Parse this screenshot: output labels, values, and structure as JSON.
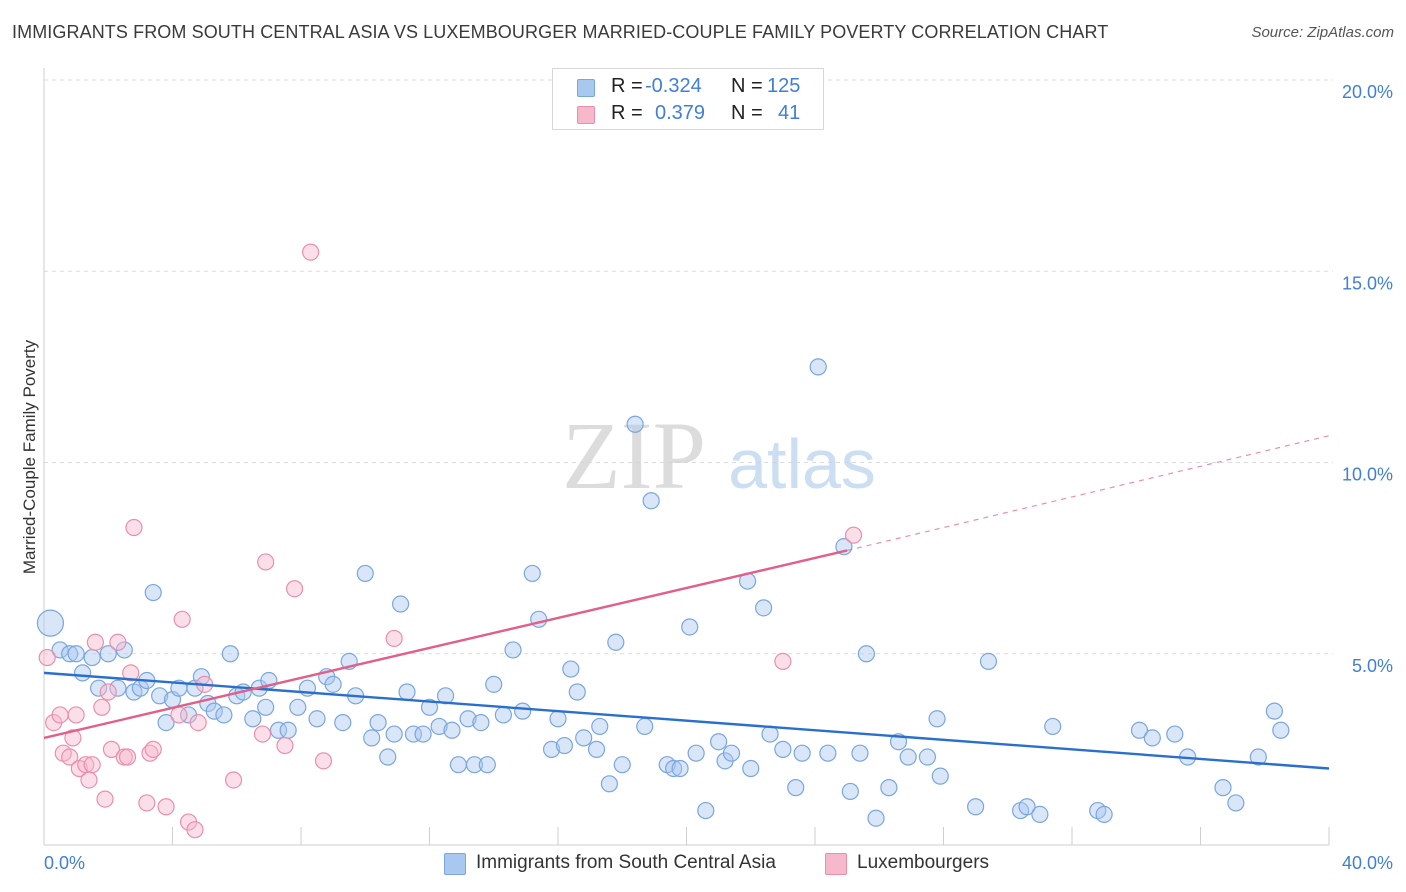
{
  "header": {
    "title": "IMMIGRANTS FROM SOUTH CENTRAL ASIA VS LUXEMBOURGER MARRIED-COUPLE FAMILY POVERTY CORRELATION CHART",
    "source": "Source: ZipAtlas.com"
  },
  "watermark": {
    "zip": "ZIP",
    "atlas": "atlas"
  },
  "stats_legend": {
    "rows": [
      {
        "r_label": "R =",
        "r_value": "-0.324",
        "n_label": "N =",
        "n_value": "125",
        "color": "#a9c8f0",
        "border": "#7aa6e0"
      },
      {
        "r_label": "R =",
        "r_value": "0.379",
        "n_label": "N =",
        "n_value": "41",
        "color": "#f6b9cb",
        "border": "#ea8fab"
      }
    ]
  },
  "chart_data": {
    "type": "scatter",
    "ylabel": "Married-Couple Family Poverty",
    "xlim": [
      0,
      40
    ],
    "ylim": [
      0,
      20
    ],
    "x_ticks": [
      "0.0%",
      "40.0%"
    ],
    "y_ticks": [
      {
        "value": 5,
        "label": "5.0%"
      },
      {
        "value": 10,
        "label": "10.0%"
      },
      {
        "value": 15,
        "label": "15.0%"
      },
      {
        "value": 20,
        "label": "20.0%"
      }
    ],
    "grid": true,
    "series": [
      {
        "name": "Immigrants from South Central Asia",
        "color": "#7aa6e0",
        "fill": "#a9c8f0",
        "trend_color": "#2a6fcc",
        "trend": {
          "x0": 0,
          "y0": 4.5,
          "x1": 40,
          "y1": 2.0,
          "dashed_from": 40
        },
        "points": [
          [
            0.2,
            5.8
          ],
          [
            0.5,
            5.1
          ],
          [
            0.8,
            5.0
          ],
          [
            1.0,
            5.0
          ],
          [
            1.2,
            4.5
          ],
          [
            1.5,
            4.9
          ],
          [
            1.7,
            4.1
          ],
          [
            2.0,
            5.0
          ],
          [
            2.3,
            4.1
          ],
          [
            2.5,
            5.1
          ],
          [
            2.8,
            4.0
          ],
          [
            3.0,
            4.1
          ],
          [
            3.2,
            4.3
          ],
          [
            3.4,
            6.6
          ],
          [
            3.6,
            3.9
          ],
          [
            3.8,
            3.2
          ],
          [
            4.0,
            3.8
          ],
          [
            4.2,
            4.1
          ],
          [
            4.5,
            3.4
          ],
          [
            4.7,
            4.1
          ],
          [
            4.9,
            4.4
          ],
          [
            5.1,
            3.7
          ],
          [
            5.3,
            3.5
          ],
          [
            5.6,
            3.4
          ],
          [
            5.8,
            5.0
          ],
          [
            6.0,
            3.9
          ],
          [
            6.2,
            4.0
          ],
          [
            6.5,
            3.3
          ],
          [
            6.7,
            4.1
          ],
          [
            6.9,
            3.6
          ],
          [
            7.0,
            4.3
          ],
          [
            7.3,
            3.0
          ],
          [
            7.6,
            3.0
          ],
          [
            7.9,
            3.6
          ],
          [
            8.2,
            4.1
          ],
          [
            8.5,
            3.3
          ],
          [
            8.8,
            4.4
          ],
          [
            9.0,
            4.2
          ],
          [
            9.3,
            3.2
          ],
          [
            9.5,
            4.8
          ],
          [
            9.7,
            3.9
          ],
          [
            10.0,
            7.1
          ],
          [
            10.2,
            2.8
          ],
          [
            10.4,
            3.2
          ],
          [
            10.7,
            2.3
          ],
          [
            10.9,
            2.9
          ],
          [
            11.1,
            6.3
          ],
          [
            11.3,
            4.0
          ],
          [
            11.5,
            2.9
          ],
          [
            11.8,
            2.9
          ],
          [
            12.0,
            3.6
          ],
          [
            12.3,
            3.1
          ],
          [
            12.5,
            3.9
          ],
          [
            12.7,
            3.0
          ],
          [
            12.9,
            2.1
          ],
          [
            13.2,
            3.3
          ],
          [
            13.4,
            2.1
          ],
          [
            13.6,
            3.2
          ],
          [
            13.8,
            2.1
          ],
          [
            14.0,
            4.2
          ],
          [
            14.3,
            3.4
          ],
          [
            14.6,
            5.1
          ],
          [
            14.9,
            3.5
          ],
          [
            15.2,
            7.1
          ],
          [
            15.4,
            5.9
          ],
          [
            15.8,
            2.5
          ],
          [
            16.0,
            3.3
          ],
          [
            16.2,
            2.6
          ],
          [
            16.4,
            4.6
          ],
          [
            16.6,
            4.0
          ],
          [
            16.8,
            2.8
          ],
          [
            17.2,
            2.5
          ],
          [
            17.3,
            3.1
          ],
          [
            17.6,
            1.6
          ],
          [
            17.8,
            5.3
          ],
          [
            18.0,
            2.1
          ],
          [
            18.4,
            11.0
          ],
          [
            18.7,
            3.1
          ],
          [
            18.9,
            9.0
          ],
          [
            19.4,
            2.1
          ],
          [
            19.6,
            2.0
          ],
          [
            19.8,
            2.0
          ],
          [
            20.1,
            5.7
          ],
          [
            20.3,
            2.4
          ],
          [
            20.6,
            0.9
          ],
          [
            21.0,
            2.7
          ],
          [
            21.2,
            2.2
          ],
          [
            21.4,
            2.4
          ],
          [
            21.9,
            6.9
          ],
          [
            22.0,
            2.0
          ],
          [
            22.4,
            6.2
          ],
          [
            22.6,
            2.9
          ],
          [
            23.0,
            2.5
          ],
          [
            23.4,
            1.5
          ],
          [
            23.6,
            2.4
          ],
          [
            24.1,
            12.5
          ],
          [
            24.4,
            2.4
          ],
          [
            24.9,
            7.8
          ],
          [
            25.1,
            1.4
          ],
          [
            25.4,
            2.4
          ],
          [
            25.6,
            5.0
          ],
          [
            25.9,
            0.7
          ],
          [
            26.3,
            1.5
          ],
          [
            26.6,
            2.7
          ],
          [
            26.9,
            2.3
          ],
          [
            27.5,
            2.3
          ],
          [
            27.8,
            3.3
          ],
          [
            27.9,
            1.8
          ],
          [
            29.0,
            1.0
          ],
          [
            29.4,
            4.8
          ],
          [
            30.4,
            0.9
          ],
          [
            30.6,
            1.0
          ],
          [
            31.0,
            0.8
          ],
          [
            31.4,
            3.1
          ],
          [
            32.8,
            0.9
          ],
          [
            33.0,
            0.8
          ],
          [
            34.1,
            3.0
          ],
          [
            34.5,
            2.8
          ],
          [
            35.2,
            2.9
          ],
          [
            35.6,
            2.3
          ],
          [
            36.7,
            1.5
          ],
          [
            37.1,
            1.1
          ],
          [
            37.8,
            2.3
          ],
          [
            38.3,
            3.5
          ],
          [
            38.5,
            3.0
          ]
        ],
        "large_points": [
          [
            0.2,
            5.8
          ]
        ]
      },
      {
        "name": "Luxembourgers",
        "color": "#ea8fab",
        "fill": "#f6b9cb",
        "trend_color": "#e0608a",
        "trend": {
          "x0": 0,
          "y0": 2.8,
          "x1": 25,
          "y1": 7.7,
          "dashed_from": 25,
          "dash_x1": 40,
          "dash_y1": 10.7
        },
        "points": [
          [
            0.1,
            4.9
          ],
          [
            0.3,
            3.2
          ],
          [
            0.5,
            3.4
          ],
          [
            0.6,
            2.4
          ],
          [
            0.8,
            2.3
          ],
          [
            0.9,
            2.8
          ],
          [
            1.0,
            3.4
          ],
          [
            1.1,
            2.0
          ],
          [
            1.3,
            2.1
          ],
          [
            1.4,
            1.7
          ],
          [
            1.5,
            2.1
          ],
          [
            1.6,
            5.3
          ],
          [
            1.8,
            3.6
          ],
          [
            1.9,
            1.2
          ],
          [
            2.0,
            4.0
          ],
          [
            2.1,
            2.5
          ],
          [
            2.3,
            5.3
          ],
          [
            2.5,
            2.3
          ],
          [
            2.6,
            2.3
          ],
          [
            2.7,
            4.5
          ],
          [
            2.8,
            8.3
          ],
          [
            3.2,
            1.1
          ],
          [
            3.3,
            2.4
          ],
          [
            3.4,
            2.5
          ],
          [
            3.8,
            1.0
          ],
          [
            4.2,
            3.4
          ],
          [
            4.3,
            5.9
          ],
          [
            4.5,
            0.6
          ],
          [
            4.7,
            0.4
          ],
          [
            4.8,
            3.2
          ],
          [
            5.0,
            4.2
          ],
          [
            5.9,
            1.7
          ],
          [
            6.8,
            2.9
          ],
          [
            6.9,
            7.4
          ],
          [
            7.5,
            2.6
          ],
          [
            7.8,
            6.7
          ],
          [
            8.7,
            2.2
          ],
          [
            10.9,
            5.4
          ],
          [
            23.0,
            4.8
          ],
          [
            25.2,
            8.1
          ],
          [
            8.3,
            15.5
          ]
        ]
      }
    ]
  },
  "bottom_legend": [
    {
      "label": "Immigrants from South Central Asia",
      "color": "#a9c8f0",
      "border": "#7aa6e0"
    },
    {
      "label": "Luxembourgers",
      "color": "#f6b9cb",
      "border": "#ea8fab"
    }
  ]
}
